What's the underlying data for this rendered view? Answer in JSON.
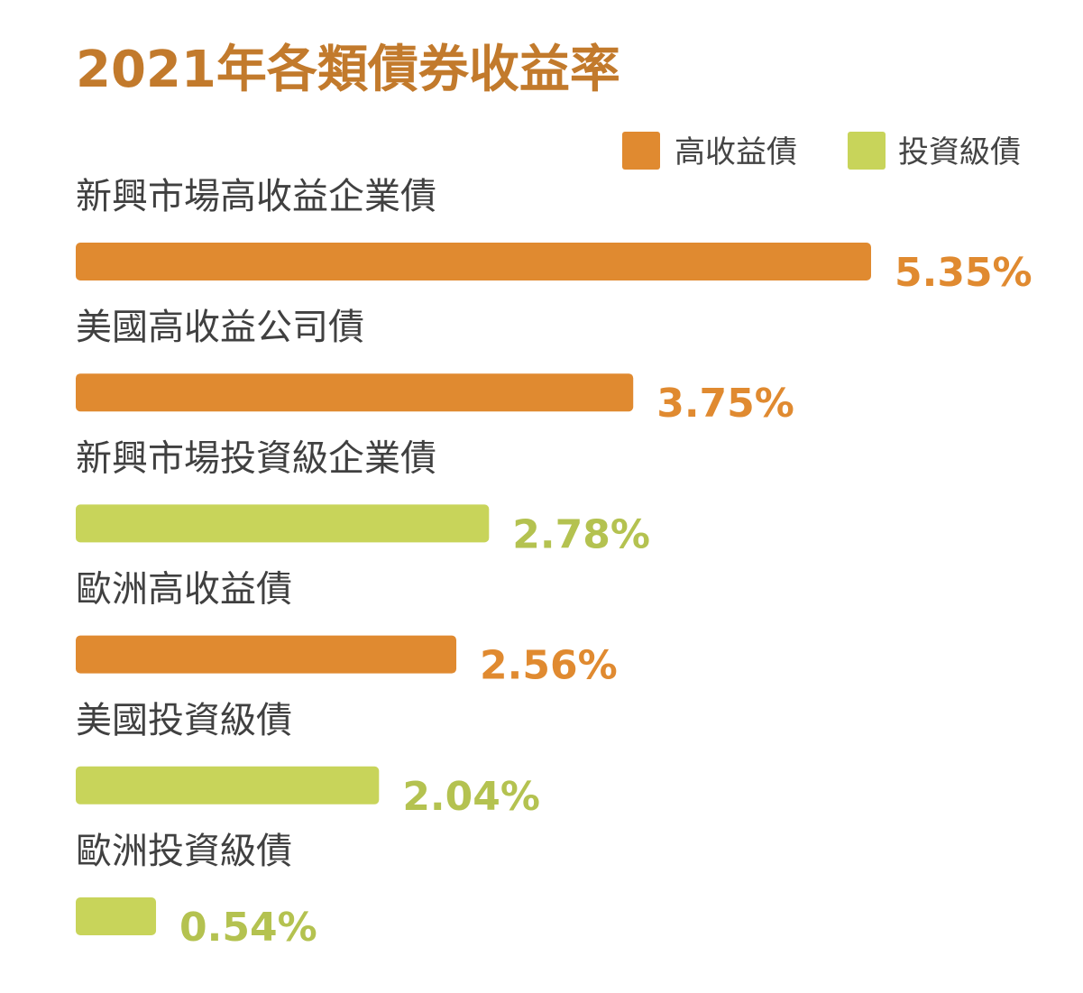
{
  "colors": {
    "high_yield": "#E08A30",
    "investment_grade": "#C8D45A",
    "title": "#C27A2C",
    "high_yield_label": "#E08A30",
    "investment_grade_label": "#B4C250"
  },
  "chart_data": {
    "type": "bar",
    "orientation": "horizontal",
    "title": "2021年各類債券收益率",
    "xlabel": "",
    "ylabel": "",
    "grid": false,
    "legend": {
      "placement": "top-right",
      "entries": [
        {
          "name": "高收益債",
          "color_key": "high_yield"
        },
        {
          "name": "投資級債",
          "color_key": "investment_grade"
        }
      ]
    },
    "categories": [
      "新興市場高收益企業債",
      "美國高收益公司債",
      "新興市場投資級企業債",
      "歐洲高收益債",
      "美國投資級債",
      "歐洲投資級債"
    ],
    "values": [
      5.35,
      3.75,
      2.78,
      2.56,
      2.04,
      0.54
    ],
    "value_labels": [
      "5.35%",
      "3.75%",
      "2.78%",
      "2.56%",
      "2.04%",
      "0.54%"
    ],
    "groups": [
      "high_yield",
      "high_yield",
      "investment_grade",
      "high_yield",
      "investment_grade",
      "investment_grade"
    ],
    "unit": "%",
    "xlim": [
      0,
      5.35
    ]
  }
}
